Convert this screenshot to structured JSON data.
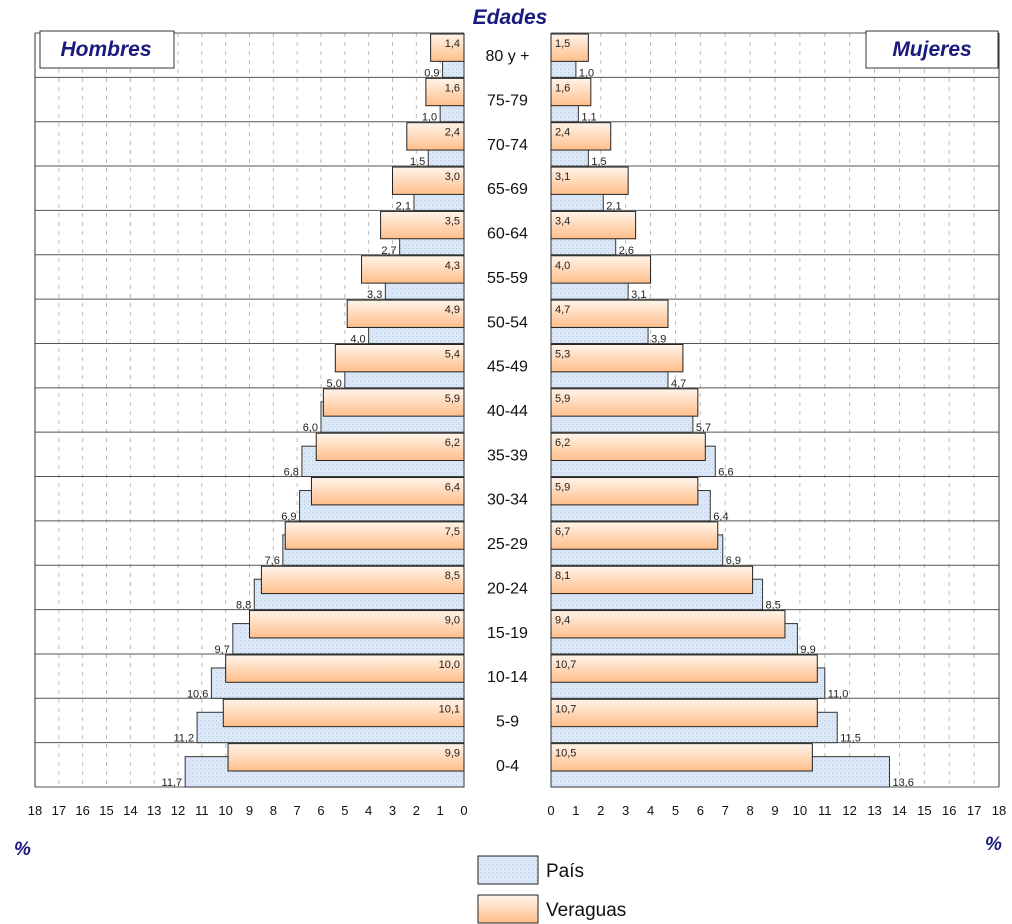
{
  "chart_data": {
    "type": "bar",
    "subtype": "population-pyramid",
    "title": "Edades",
    "left_panel_label": "Hombres",
    "right_panel_label": "Mujeres",
    "unit_label_left": "%",
    "unit_label_right": "%",
    "categories": [
      "80 y +",
      "75-79",
      "70-74",
      "65-69",
      "60-64",
      "55-59",
      "50-54",
      "45-49",
      "40-44",
      "35-39",
      "30-34",
      "25-29",
      "20-24",
      "15-19",
      "10-14",
      "5-9",
      "0-4"
    ],
    "category_labels_display": [
      "80 y +",
      "75-79",
      "70-74",
      "65-69",
      "60-64",
      "55-59",
      "50-54",
      "45-49",
      "40-44",
      "35-39",
      "30-34",
      "25-29",
      "20-24",
      "15-19",
      "10-14",
      "5-9",
      "0-4"
    ],
    "xlim": [
      0,
      18
    ],
    "ticks": [
      0,
      1,
      2,
      3,
      4,
      5,
      6,
      7,
      8,
      9,
      10,
      11,
      12,
      13,
      14,
      15,
      16,
      17,
      18
    ],
    "grid": true,
    "legend_position": "bottom-center",
    "series": [
      {
        "name": "País",
        "color": "#d8e6f5",
        "hombres": [
          0.9,
          1.0,
          1.5,
          2.1,
          2.7,
          3.3,
          4.0,
          5.0,
          6.0,
          6.8,
          6.9,
          7.6,
          8.8,
          9.7,
          10.6,
          11.2,
          11.7
        ],
        "mujeres": [
          1.0,
          1.1,
          1.5,
          2.1,
          2.6,
          3.1,
          3.9,
          4.7,
          5.7,
          6.6,
          6.4,
          6.9,
          8.5,
          9.9,
          11.0,
          11.5,
          13.6
        ],
        "hombres_labels": [
          "0,9",
          "1,0",
          "1,5",
          "2,1",
          "2,7",
          "3,3",
          "4,0",
          "5,0",
          "6,0",
          "6,8",
          "6,9",
          "7,6",
          "8,8",
          "9,7",
          "10,6",
          "11,2",
          "11,7"
        ],
        "mujeres_labels": [
          "1,0",
          "1,1",
          "1,5",
          "2,1",
          "2,6",
          "3,1",
          "3,9",
          "4,7",
          "5,7",
          "6,6",
          "6,4",
          "6,9",
          "8,5",
          "9,9",
          "11,0",
          "11,5",
          "13,6"
        ]
      },
      {
        "name": "Veraguas",
        "color": "#ffc89a",
        "hombres": [
          1.4,
          1.6,
          2.4,
          3.0,
          3.5,
          4.3,
          4.9,
          5.4,
          5.9,
          6.2,
          6.4,
          7.5,
          8.5,
          9.0,
          10.0,
          10.1,
          9.9
        ],
        "mujeres": [
          1.5,
          1.6,
          2.4,
          3.1,
          3.4,
          4.0,
          4.7,
          5.3,
          5.9,
          6.2,
          5.9,
          6.7,
          8.1,
          9.4,
          10.7,
          10.7,
          10.5
        ],
        "hombres_labels": [
          "1,4",
          "1,6",
          "2,4",
          "3,0",
          "3,5",
          "4,3",
          "4,9",
          "5,4",
          "5,9",
          "6,2",
          "6,4",
          "7,5",
          "8,5",
          "9,0",
          "10,0",
          "10,1",
          "9,9"
        ],
        "mujeres_labels": [
          "1,5",
          "1,6",
          "2,4",
          "3,1",
          "3,4",
          "4,0",
          "4,7",
          "5,3",
          "5,9",
          "6,2",
          "5,9",
          "6,7",
          "8,1",
          "9,4",
          "10,7",
          "10,7",
          "10,5"
        ]
      }
    ]
  }
}
